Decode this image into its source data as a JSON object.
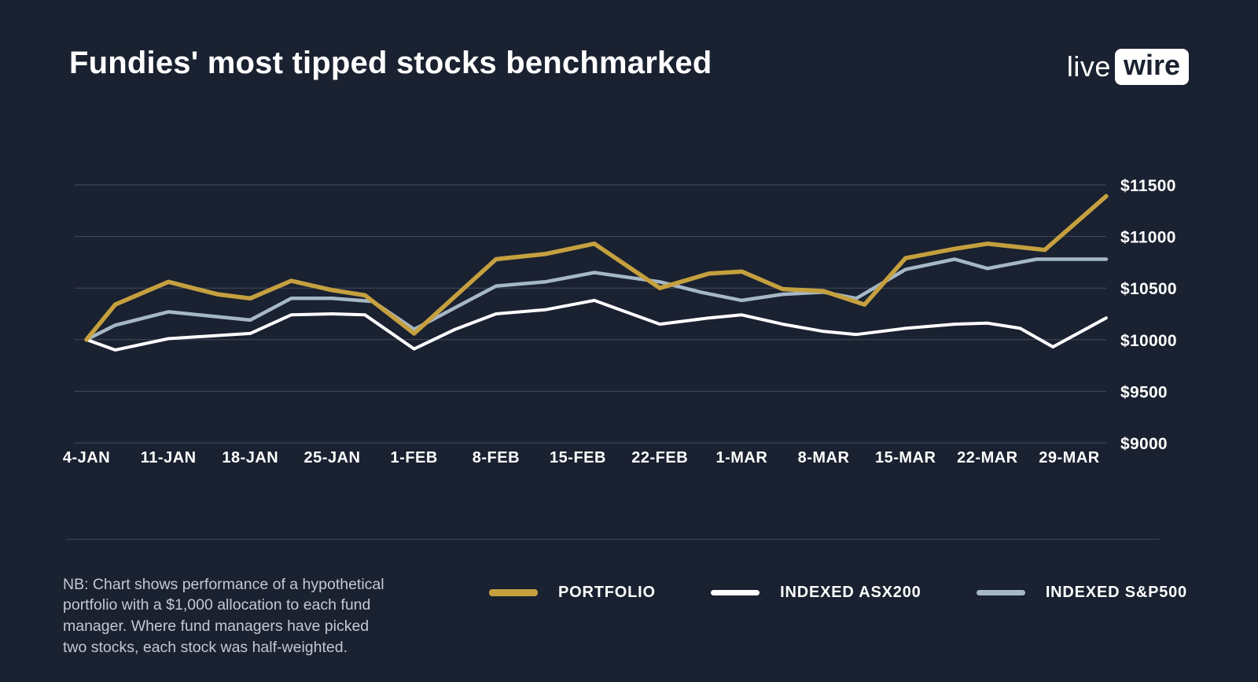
{
  "header": {
    "title": "Fundies' most tipped stocks benchmarked",
    "logo": {
      "live": "live",
      "wire": "wire"
    }
  },
  "note": {
    "lines": [
      "NB: Chart shows performance of a hypothetical",
      "portfolio with a $1,000 allocation to each fund",
      "manager. Where fund managers have picked",
      "two stocks, each stock was half-weighted."
    ]
  },
  "colors": {
    "background": "#1a2130",
    "gridline": "#454d5c",
    "portfolio": "#c5a03f",
    "asx200": "#ffffff",
    "sp500": "#a6b7c6",
    "note_text": "#c3c9d3"
  },
  "chart_data": {
    "type": "line",
    "title": "Fundies' most tipped stocks benchmarked",
    "xlabel": "",
    "ylabel": "",
    "grid": true,
    "legend_position": "bottom",
    "ylim": [
      9000,
      11500
    ],
    "y_ticks": [
      9000,
      9500,
      10000,
      10500,
      11000,
      11500
    ],
    "y_tick_labels": [
      "$9000",
      "$9500",
      "$10000",
      "$10500",
      "$11000",
      "$11500"
    ],
    "x_labels": [
      "4-JAN",
      "11-JAN",
      "18-JAN",
      "25-JAN",
      "1-FEB",
      "8-FEB",
      "15-FEB",
      "22-FEB",
      "1-MAR",
      "8-MAR",
      "15-MAR",
      "22-MAR",
      "29-MAR"
    ],
    "x_unit": "weeks since 4-JAN (label index)",
    "series": [
      {
        "name": "PORTFOLIO",
        "color": "#c5a03f",
        "width": 5.5,
        "points": [
          [
            0,
            10000
          ],
          [
            0.35,
            10340
          ],
          [
            1,
            10560
          ],
          [
            1.6,
            10440
          ],
          [
            2,
            10400
          ],
          [
            2.5,
            10570
          ],
          [
            3,
            10480
          ],
          [
            3.4,
            10430
          ],
          [
            4,
            10060
          ],
          [
            5,
            10780
          ],
          [
            5.6,
            10830
          ],
          [
            6.2,
            10930
          ],
          [
            7,
            10500
          ],
          [
            7.6,
            10640
          ],
          [
            8,
            10660
          ],
          [
            8.5,
            10490
          ],
          [
            9,
            10470
          ],
          [
            9.5,
            10340
          ],
          [
            10,
            10790
          ],
          [
            10.6,
            10880
          ],
          [
            11,
            10930
          ],
          [
            11.7,
            10870
          ],
          [
            12.45,
            11390
          ]
        ]
      },
      {
        "name": "INDEXED ASX200",
        "color": "#ffffff",
        "width": 4,
        "points": [
          [
            0,
            10000
          ],
          [
            0.35,
            9900
          ],
          [
            1,
            10010
          ],
          [
            2,
            10060
          ],
          [
            2.5,
            10240
          ],
          [
            3,
            10250
          ],
          [
            3.4,
            10240
          ],
          [
            4,
            9910
          ],
          [
            4.5,
            10100
          ],
          [
            5,
            10250
          ],
          [
            5.6,
            10290
          ],
          [
            6.2,
            10380
          ],
          [
            7,
            10150
          ],
          [
            7.6,
            10210
          ],
          [
            8,
            10240
          ],
          [
            8.5,
            10150
          ],
          [
            9,
            10080
          ],
          [
            9.4,
            10050
          ],
          [
            10,
            10110
          ],
          [
            10.6,
            10150
          ],
          [
            11,
            10160
          ],
          [
            11.4,
            10110
          ],
          [
            11.8,
            9930
          ],
          [
            12.45,
            10210
          ]
        ]
      },
      {
        "name": "INDEXED S&P500",
        "color": "#a6b7c6",
        "width": 4.5,
        "points": [
          [
            0,
            10000
          ],
          [
            0.35,
            10140
          ],
          [
            1,
            10270
          ],
          [
            1.5,
            10230
          ],
          [
            2,
            10190
          ],
          [
            2.5,
            10400
          ],
          [
            3,
            10400
          ],
          [
            3.5,
            10370
          ],
          [
            4,
            10100
          ],
          [
            5,
            10520
          ],
          [
            5.6,
            10560
          ],
          [
            6.2,
            10650
          ],
          [
            7,
            10560
          ],
          [
            7.5,
            10460
          ],
          [
            8,
            10380
          ],
          [
            8.5,
            10440
          ],
          [
            9,
            10460
          ],
          [
            9.4,
            10400
          ],
          [
            10,
            10680
          ],
          [
            10.6,
            10780
          ],
          [
            11,
            10690
          ],
          [
            11.6,
            10780
          ],
          [
            12.45,
            10780
          ]
        ]
      }
    ]
  }
}
